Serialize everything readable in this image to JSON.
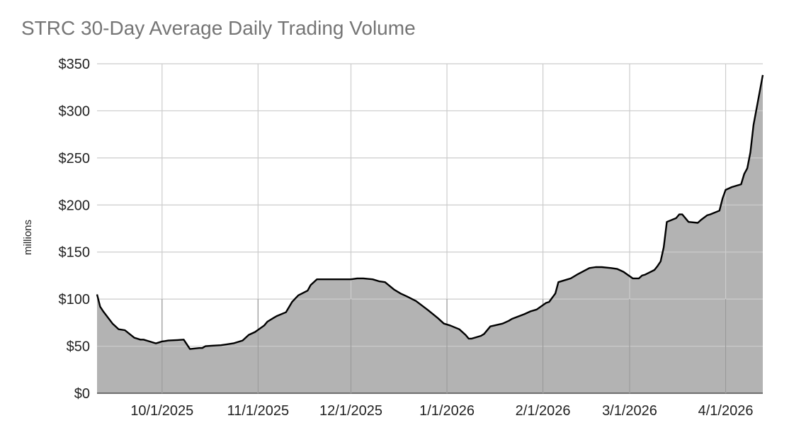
{
  "chart_data": {
    "type": "area",
    "title": "STRC 30-Day Average Daily Trading Volume",
    "xlabel": "",
    "ylabel": "millions",
    "ylim": [
      0,
      350
    ],
    "grid": true,
    "legend": "none",
    "colors": {
      "fill": "#b3b3b3",
      "line": "#000000",
      "grid": "#cccccc",
      "grid_x": "#999999",
      "title": "#757575"
    },
    "y_ticks": [
      0,
      50,
      100,
      150,
      200,
      250,
      300,
      350
    ],
    "y_tick_labels": [
      "$0",
      "$50",
      "$100",
      "$150",
      "$200",
      "$250",
      "$300",
      "$350"
    ],
    "x_ticks": [
      {
        "date": "2025-10-01",
        "label": "10/1/2025"
      },
      {
        "date": "2025-11-01",
        "label": "11/1/2025"
      },
      {
        "date": "2025-12-01",
        "label": "12/1/2025"
      },
      {
        "date": "2026-01-01",
        "label": "1/1/2026"
      },
      {
        "date": "2026-02-01",
        "label": "2/1/2026"
      },
      {
        "date": "2026-03-01",
        "label": "3/1/2026"
      },
      {
        "date": "2026-04-01",
        "label": "4/1/2026"
      }
    ],
    "xlim": [
      "2025-09-10",
      "2026-04-13"
    ],
    "series": [
      {
        "x": [
          "2025-09-10",
          "2025-09-11",
          "2025-09-12",
          "2025-09-15",
          "2025-09-17",
          "2025-09-19",
          "2025-09-22",
          "2025-09-24",
          "2025-09-25",
          "2025-09-26",
          "2025-09-29",
          "2025-09-30",
          "2025-10-01",
          "2025-10-02",
          "2025-10-03",
          "2025-10-06",
          "2025-10-08",
          "2025-10-09",
          "2025-10-10",
          "2025-10-13",
          "2025-10-14",
          "2025-10-15",
          "2025-10-17",
          "2025-10-20",
          "2025-10-22",
          "2025-10-24",
          "2025-10-27",
          "2025-10-29",
          "2025-10-31",
          "2025-11-03",
          "2025-11-04",
          "2025-11-06",
          "2025-11-07",
          "2025-11-10",
          "2025-11-12",
          "2025-11-14",
          "2025-11-17",
          "2025-11-18",
          "2025-11-20",
          "2025-11-24",
          "2025-11-26",
          "2025-12-01",
          "2025-12-03",
          "2025-12-05",
          "2025-12-08",
          "2025-12-10",
          "2025-12-12",
          "2025-12-15",
          "2025-12-17",
          "2025-12-19",
          "2025-12-22",
          "2025-12-24",
          "2025-12-26",
          "2025-12-29",
          "2025-12-31",
          "2026-01-02",
          "2026-01-05",
          "2026-01-07",
          "2026-01-08",
          "2026-01-09",
          "2026-01-12",
          "2026-01-13",
          "2026-01-15",
          "2026-01-19",
          "2026-01-21",
          "2026-01-22",
          "2026-01-26",
          "2026-01-28",
          "2026-01-30",
          "2026-02-02",
          "2026-02-03",
          "2026-02-05",
          "2026-02-06",
          "2026-02-09",
          "2026-02-10",
          "2026-02-12",
          "2026-02-16",
          "2026-02-18",
          "2026-02-20",
          "2026-02-23",
          "2026-02-25",
          "2026-02-27",
          "2026-03-02",
          "2026-03-03",
          "2026-03-04",
          "2026-03-05",
          "2026-03-06",
          "2026-03-09",
          "2026-03-10",
          "2026-03-11",
          "2026-03-12",
          "2026-03-13",
          "2026-03-16",
          "2026-03-17",
          "2026-03-18",
          "2026-03-20",
          "2026-03-23",
          "2026-03-24",
          "2026-03-26",
          "2026-03-27",
          "2026-03-30",
          "2026-03-31",
          "2026-04-01",
          "2026-04-03",
          "2026-04-06",
          "2026-04-07",
          "2026-04-08",
          "2026-04-09",
          "2026-04-10",
          "2026-04-13"
        ],
        "values": [
          105,
          92,
          87,
          74,
          68,
          67,
          59,
          57,
          57,
          56,
          53,
          54,
          55,
          55.5,
          56,
          56.5,
          57,
          52,
          47,
          48,
          48,
          50,
          50.5,
          51,
          52,
          53,
          56,
          62,
          65,
          72,
          76,
          80,
          82,
          86,
          97,
          104,
          109,
          115,
          121,
          121,
          121,
          121,
          122,
          122,
          121,
          119,
          118,
          110,
          106,
          103,
          98,
          93,
          88,
          80,
          74,
          72,
          68,
          62,
          58,
          58,
          61,
          63,
          71,
          74,
          77,
          79,
          84,
          87,
          89,
          96,
          97,
          106,
          118,
          121,
          122,
          126,
          133,
          134,
          134,
          133,
          132,
          129,
          122,
          122,
          122,
          125,
          126,
          131,
          135,
          140,
          155,
          182,
          186,
          190,
          190,
          182,
          181,
          184,
          189,
          190,
          194,
          207,
          216,
          219,
          222,
          233,
          239,
          256,
          285,
          338
        ]
      }
    ]
  }
}
